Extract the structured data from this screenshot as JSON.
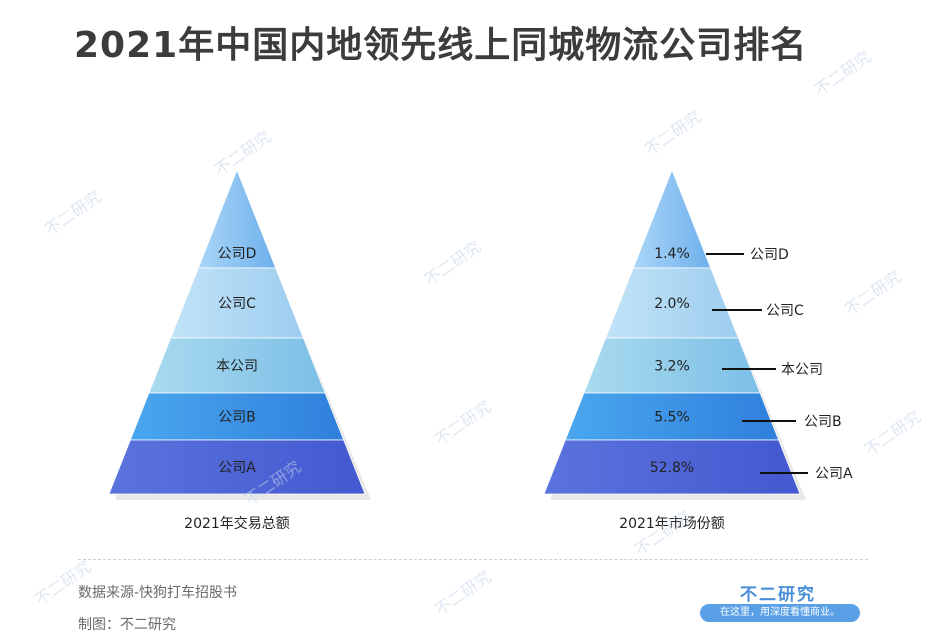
{
  "title": "2021年中国内地领先线上同城物流公司排名",
  "left_pyramid": {
    "caption": "2021年交易总额",
    "layers": [
      "公司D",
      "公司C",
      "本公司",
      "公司B",
      "公司A"
    ]
  },
  "right_pyramid": {
    "caption": "2021年市场份额",
    "values": [
      "1.4%",
      "2.0%",
      "3.2%",
      "5.5%",
      "52.8%"
    ],
    "labels": [
      "公司D",
      "公司C",
      "本公司",
      "公司B",
      "公司A"
    ]
  },
  "colors": {
    "layer_top": "#8fc3f2",
    "layer_2": "#a8d3f3",
    "layer_3": "#9ed2ec",
    "layer_4": "#3a8fe3",
    "layer_5": "#4e67d8"
  },
  "footer": {
    "source": "数据来源-快狗打车招股书",
    "made_by": "制图：不二研究",
    "logo_name": "不二研究",
    "slogan": "在这里，用深度看懂商业。"
  },
  "watermark_text": "不二研究"
}
